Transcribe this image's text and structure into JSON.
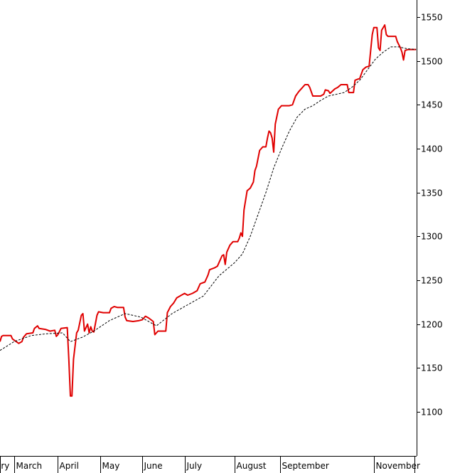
{
  "chart_data": {
    "type": "line",
    "title": "",
    "xlabel": "",
    "ylabel": "",
    "ylim": [
      1045,
      1555
    ],
    "y_ticks": [
      1100,
      1150,
      1200,
      1250,
      1300,
      1350,
      1400,
      1450,
      1500,
      1550
    ],
    "y_axis_position": "right",
    "grid": false,
    "legend": "none",
    "colors": {
      "price": "#e00000",
      "average": "#000000"
    },
    "month_labels": [
      {
        "label": "ary",
        "day": 0
      },
      {
        "label": "March",
        "day": 18
      },
      {
        "label": "April",
        "day": 74
      },
      {
        "label": "May",
        "day": 128
      },
      {
        "label": "June",
        "day": 182
      },
      {
        "label": "July",
        "day": 236
      },
      {
        "label": "August",
        "day": 300
      },
      {
        "label": "September",
        "day": 358
      },
      {
        "label": "November",
        "day": 478
      }
    ],
    "x_range_days": [
      0,
      530
    ],
    "series": [
      {
        "id": "price",
        "style": "solid",
        "points": [
          [
            0,
            1180
          ],
          [
            2,
            1186
          ],
          [
            4,
            1187
          ],
          [
            14,
            1187
          ],
          [
            16,
            1183
          ],
          [
            24,
            1178
          ],
          [
            28,
            1180
          ],
          [
            30,
            1185
          ],
          [
            34,
            1189
          ],
          [
            42,
            1190
          ],
          [
            44,
            1195
          ],
          [
            48,
            1198
          ],
          [
            50,
            1195
          ],
          [
            58,
            1194
          ],
          [
            64,
            1192
          ],
          [
            70,
            1193
          ],
          [
            72,
            1186
          ],
          [
            74,
            1188
          ],
          [
            78,
            1195
          ],
          [
            86,
            1196
          ],
          [
            88,
            1160
          ],
          [
            90,
            1118
          ],
          [
            92,
            1118
          ],
          [
            94,
            1160
          ],
          [
            96,
            1175
          ],
          [
            98,
            1190
          ],
          [
            100,
            1193
          ],
          [
            104,
            1210
          ],
          [
            106,
            1212
          ],
          [
            108,
            1192
          ],
          [
            112,
            1200
          ],
          [
            114,
            1190
          ],
          [
            116,
            1197
          ],
          [
            118,
            1192
          ],
          [
            120,
            1191
          ],
          [
            124,
            1210
          ],
          [
            126,
            1214
          ],
          [
            132,
            1213
          ],
          [
            140,
            1213
          ],
          [
            142,
            1218
          ],
          [
            146,
            1220
          ],
          [
            150,
            1219
          ],
          [
            158,
            1219
          ],
          [
            160,
            1208
          ],
          [
            162,
            1204
          ],
          [
            170,
            1203
          ],
          [
            178,
            1204
          ],
          [
            182,
            1205
          ],
          [
            186,
            1209
          ],
          [
            190,
            1207
          ],
          [
            196,
            1203
          ],
          [
            198,
            1188
          ],
          [
            202,
            1192
          ],
          [
            212,
            1192
          ],
          [
            214,
            1213
          ],
          [
            218,
            1220
          ],
          [
            222,
            1224
          ],
          [
            226,
            1230
          ],
          [
            230,
            1232
          ],
          [
            236,
            1235
          ],
          [
            240,
            1233
          ],
          [
            246,
            1235
          ],
          [
            252,
            1238
          ],
          [
            256,
            1246
          ],
          [
            262,
            1248
          ],
          [
            266,
            1256
          ],
          [
            268,
            1262
          ],
          [
            274,
            1264
          ],
          [
            278,
            1266
          ],
          [
            280,
            1270
          ],
          [
            282,
            1274
          ],
          [
            284,
            1278
          ],
          [
            286,
            1279
          ],
          [
            288,
            1268
          ],
          [
            290,
            1282
          ],
          [
            294,
            1290
          ],
          [
            298,
            1294
          ],
          [
            304,
            1294
          ],
          [
            306,
            1298
          ],
          [
            308,
            1304
          ],
          [
            310,
            1300
          ],
          [
            312,
            1330
          ],
          [
            316,
            1352
          ],
          [
            320,
            1355
          ],
          [
            324,
            1362
          ],
          [
            326,
            1375
          ],
          [
            328,
            1380
          ],
          [
            332,
            1398
          ],
          [
            336,
            1402
          ],
          [
            340,
            1402
          ],
          [
            342,
            1412
          ],
          [
            344,
            1420
          ],
          [
            346,
            1418
          ],
          [
            348,
            1412
          ],
          [
            350,
            1396
          ],
          [
            352,
            1428
          ],
          [
            356,
            1445
          ],
          [
            360,
            1449
          ],
          [
            370,
            1449
          ],
          [
            374,
            1450
          ],
          [
            378,
            1460
          ],
          [
            382,
            1465
          ],
          [
            386,
            1469
          ],
          [
            390,
            1473
          ],
          [
            394,
            1473
          ],
          [
            396,
            1470
          ],
          [
            400,
            1460
          ],
          [
            410,
            1460
          ],
          [
            414,
            1462
          ],
          [
            416,
            1467
          ],
          [
            420,
            1466
          ],
          [
            422,
            1463
          ],
          [
            428,
            1468
          ],
          [
            432,
            1470
          ],
          [
            436,
            1473
          ],
          [
            444,
            1473
          ],
          [
            446,
            1464
          ],
          [
            452,
            1464
          ],
          [
            454,
            1478
          ],
          [
            460,
            1480
          ],
          [
            464,
            1490
          ],
          [
            468,
            1493
          ],
          [
            472,
            1494
          ],
          [
            474,
            1512
          ],
          [
            476,
            1530
          ],
          [
            478,
            1538
          ],
          [
            482,
            1538
          ],
          [
            484,
            1515
          ],
          [
            486,
            1512
          ],
          [
            488,
            1535
          ],
          [
            492,
            1541
          ],
          [
            494,
            1530
          ],
          [
            496,
            1528
          ],
          [
            506,
            1528
          ],
          [
            508,
            1522
          ],
          [
            512,
            1515
          ],
          [
            514,
            1510
          ],
          [
            516,
            1501
          ],
          [
            518,
            1512
          ],
          [
            522,
            1513
          ],
          [
            532,
            1513
          ]
        ]
      },
      {
        "id": "average",
        "style": "dashed",
        "points": [
          [
            0,
            1170
          ],
          [
            18,
            1180
          ],
          [
            40,
            1187
          ],
          [
            60,
            1189
          ],
          [
            80,
            1190
          ],
          [
            90,
            1180
          ],
          [
            105,
            1185
          ],
          [
            120,
            1192
          ],
          [
            140,
            1204
          ],
          [
            160,
            1212
          ],
          [
            180,
            1208
          ],
          [
            200,
            1198
          ],
          [
            220,
            1212
          ],
          [
            240,
            1222
          ],
          [
            260,
            1232
          ],
          [
            280,
            1255
          ],
          [
            300,
            1270
          ],
          [
            310,
            1280
          ],
          [
            320,
            1300
          ],
          [
            330,
            1325
          ],
          [
            340,
            1350
          ],
          [
            350,
            1378
          ],
          [
            360,
            1400
          ],
          [
            370,
            1420
          ],
          [
            380,
            1436
          ],
          [
            390,
            1445
          ],
          [
            400,
            1449
          ],
          [
            410,
            1455
          ],
          [
            420,
            1460
          ],
          [
            440,
            1464
          ],
          [
            450,
            1470
          ],
          [
            460,
            1478
          ],
          [
            470,
            1490
          ],
          [
            480,
            1502
          ],
          [
            490,
            1510
          ],
          [
            500,
            1516
          ],
          [
            510,
            1516
          ],
          [
            520,
            1514
          ],
          [
            532,
            1513
          ]
        ]
      }
    ]
  }
}
